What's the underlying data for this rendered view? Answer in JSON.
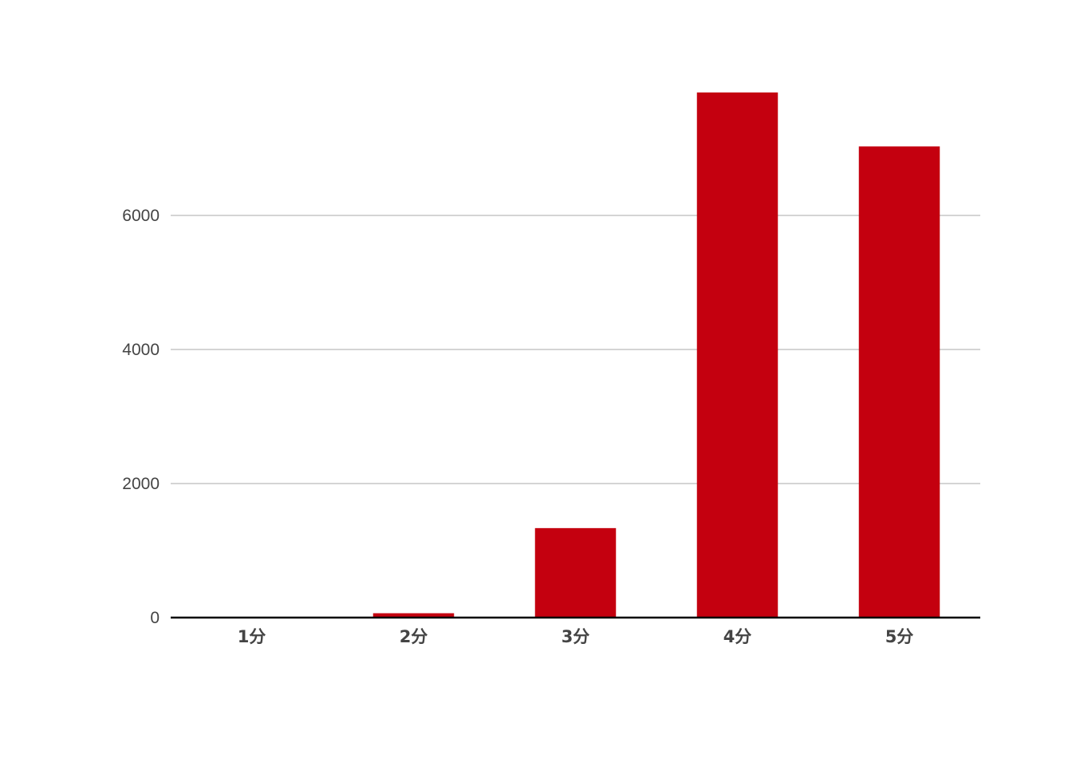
{
  "chart_data": {
    "type": "bar",
    "title": "",
    "xlabel": "",
    "ylabel": "",
    "categories": [
      "1分",
      "2分",
      "3分",
      "4分",
      "5分"
    ],
    "values": [
      10,
      65,
      1335,
      7835,
      7030
    ],
    "ylim": [
      0,
      8500
    ],
    "yticks": [
      0,
      2000,
      4000,
      6000
    ],
    "ytick_labels": [
      "0",
      "2000",
      "4000",
      "6000"
    ],
    "grid": true,
    "legend": "none",
    "colors": {
      "bar": "#c4000f",
      "grid": "#c6c6c6",
      "baseline": "#000000",
      "text": "#444444"
    }
  }
}
